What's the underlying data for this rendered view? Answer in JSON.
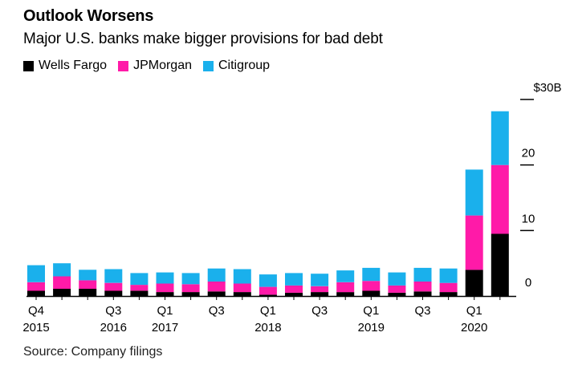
{
  "chart_data": {
    "type": "bar",
    "stacked": true,
    "title": "Outlook Worsens",
    "subtitle": "Major U.S. banks make bigger provisions for bad debt",
    "source": "Source: Company filings",
    "categories": [
      "Q4 2015",
      "Q1 2016",
      "Q2 2016",
      "Q3 2016",
      "Q4 2016",
      "Q1 2017",
      "Q2 2017",
      "Q3 2017",
      "Q4 2017",
      "Q1 2018",
      "Q2 2018",
      "Q3 2018",
      "Q4 2018",
      "Q1 2019",
      "Q2 2019",
      "Q3 2019",
      "Q4 2019",
      "Q1 2020",
      "Q2 2020"
    ],
    "series": [
      {
        "name": "Wells Fargo",
        "color": "#000000",
        "values": [
          0.8,
          1.1,
          1.1,
          0.8,
          0.8,
          0.6,
          0.6,
          0.7,
          0.6,
          0.2,
          0.5,
          0.6,
          0.6,
          0.8,
          0.5,
          0.7,
          0.6,
          4.0,
          9.5
        ]
      },
      {
        "name": "JPMorgan",
        "color": "#ff1aa8",
        "values": [
          1.3,
          1.9,
          1.3,
          1.2,
          0.9,
          1.3,
          1.2,
          1.5,
          1.3,
          1.2,
          1.1,
          0.9,
          1.5,
          1.5,
          1.1,
          1.5,
          1.4,
          8.3,
          10.5
        ]
      },
      {
        "name": "Citigroup",
        "color": "#1ab0ec",
        "values": [
          2.6,
          2.0,
          1.6,
          2.1,
          1.8,
          1.7,
          1.7,
          2.0,
          2.2,
          1.9,
          1.9,
          1.9,
          1.8,
          2.0,
          2.0,
          2.1,
          2.2,
          7.0,
          8.2
        ]
      }
    ],
    "y_ticks": [
      {
        "value": 0,
        "label": "0"
      },
      {
        "value": 10,
        "label": "10"
      },
      {
        "value": 20,
        "label": "20"
      },
      {
        "value": 30,
        "label": "$30B"
      }
    ],
    "x_labels": [
      {
        "index": 0,
        "quarter": "Q4",
        "year": "2015"
      },
      {
        "index": 3,
        "quarter": "Q3",
        "year": "2016"
      },
      {
        "index": 5,
        "quarter": "Q1",
        "year": "2017"
      },
      {
        "index": 7,
        "quarter": "Q3",
        "year": ""
      },
      {
        "index": 9,
        "quarter": "Q1",
        "year": "2018"
      },
      {
        "index": 11,
        "quarter": "Q3",
        "year": ""
      },
      {
        "index": 13,
        "quarter": "Q1",
        "year": "2019"
      },
      {
        "index": 15,
        "quarter": "Q3",
        "year": ""
      },
      {
        "index": 17,
        "quarter": "Q1",
        "year": "2020"
      }
    ],
    "ylim": [
      0,
      30
    ],
    "legend_position": "top-left",
    "grid": false
  }
}
